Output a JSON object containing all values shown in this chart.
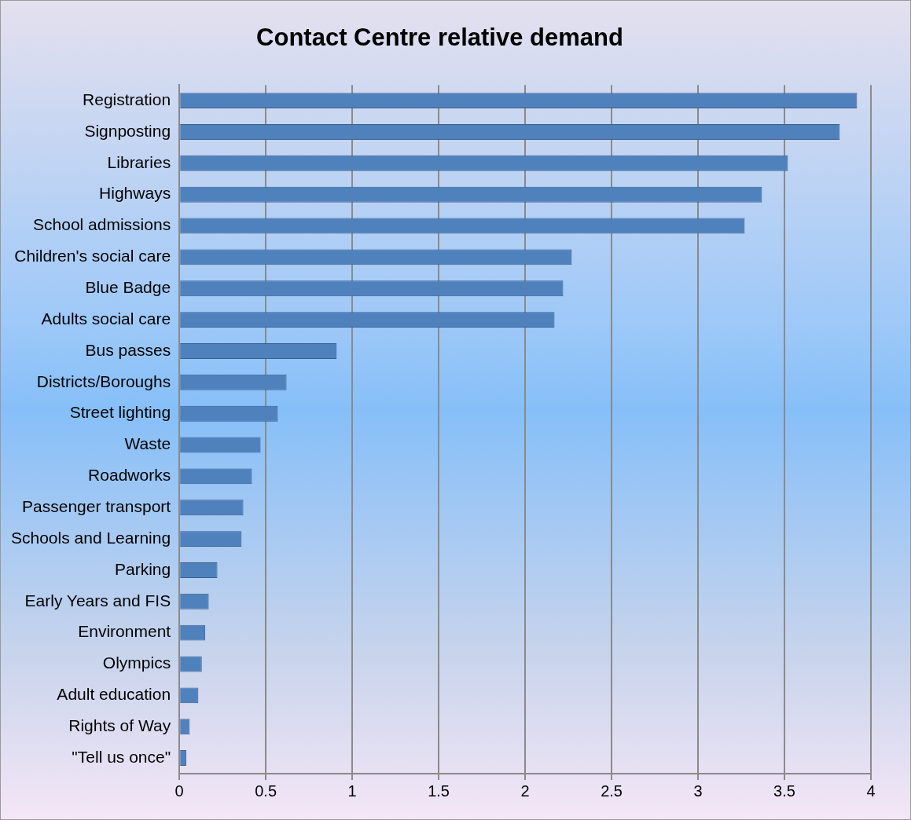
{
  "chart_data": {
    "type": "bar",
    "orientation": "horizontal",
    "title": "Contact Centre relative demand",
    "categories": [
      "Registration",
      "Signposting",
      "Libraries",
      "Highways",
      "School admissions",
      "Children's social care",
      "Blue Badge",
      "Adults social care",
      "Bus passes",
      "Districts/Boroughs",
      "Street lighting",
      "Waste",
      "Roadworks",
      "Passenger transport",
      "Schools and Learning",
      "Parking",
      "Early Years and FIS",
      "Environment",
      "Olympics",
      "Adult education",
      "Rights of Way",
      "\"Tell us once\""
    ],
    "values": [
      3.92,
      3.82,
      3.52,
      3.37,
      3.27,
      2.27,
      2.22,
      2.17,
      0.91,
      0.62,
      0.57,
      0.47,
      0.42,
      0.37,
      0.36,
      0.22,
      0.17,
      0.15,
      0.13,
      0.11,
      0.06,
      0.04
    ],
    "color": "#4f81bd",
    "xlim": [
      0,
      4
    ],
    "xticks": [
      0,
      0.5,
      1,
      1.5,
      2,
      2.5,
      3,
      3.5,
      4
    ],
    "grid": "x",
    "legend": false
  }
}
